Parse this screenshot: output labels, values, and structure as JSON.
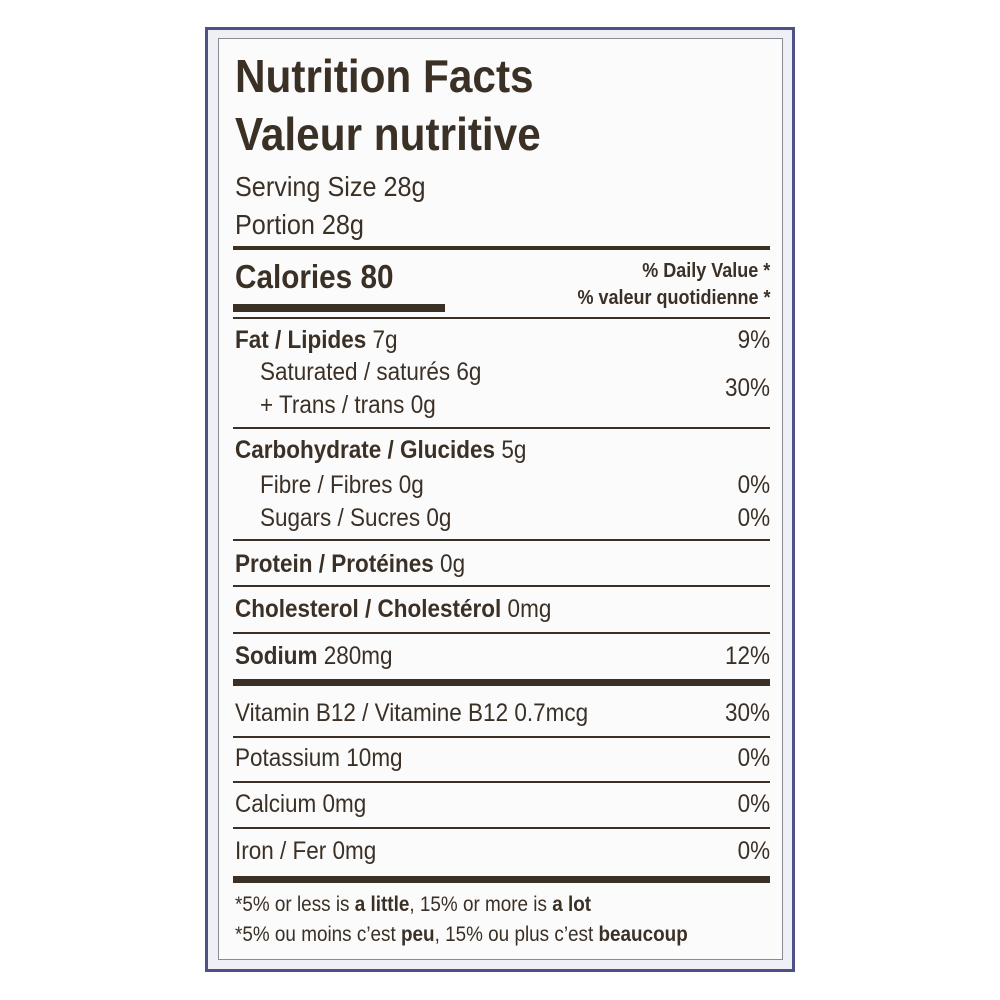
{
  "header": {
    "title": "Nutrition Facts",
    "title_fr": "Valeur nutritive",
    "serving_size": "Serving Size 28g",
    "portion": "Portion 28g"
  },
  "calories": "Calories 80",
  "daily_value_header": [
    "% Daily Value *",
    "% valeur quotidienne *"
  ],
  "nutrients": [
    {
      "name": "Fat / Lipides",
      "amount": "7g",
      "dv": "9%"
    },
    {
      "saturated": "Saturated / saturés 6g",
      "trans": "+ Trans / trans 0g",
      "dv": "30%"
    },
    {
      "name": "Carbohydrate / Glucides",
      "amount": "5g"
    },
    {
      "name": "Fibre / Fibres 0g",
      "dv": "0%"
    },
    {
      "name": "Sugars / Sucres 0g",
      "dv": "0%"
    },
    {
      "name": "Protein / Protéines",
      "amount": "0g"
    },
    {
      "name": "Cholesterol / Cholestérol",
      "amount": "0mg"
    },
    {
      "name": "Sodium",
      "amount": "280mg",
      "dv": "12%"
    }
  ],
  "vitamins_minerals": [
    {
      "name": "Vitamin B12 / Vitamine B12 0.7mcg",
      "dv": "30%"
    },
    {
      "name": "Potassium 10mg",
      "dv": "0%"
    },
    {
      "name": "Calcium 0mg",
      "dv": "0%"
    },
    {
      "name": "Iron / Fer 0mg",
      "dv": "0%"
    }
  ],
  "footnote": [
    [
      "*5% or less is ",
      "a little",
      ", 15% or more is ",
      "a lot"
    ],
    [
      "*5% ou moins c’est ",
      "peu",
      ", 15% ou plus c’est ",
      "beaucoup"
    ]
  ]
}
